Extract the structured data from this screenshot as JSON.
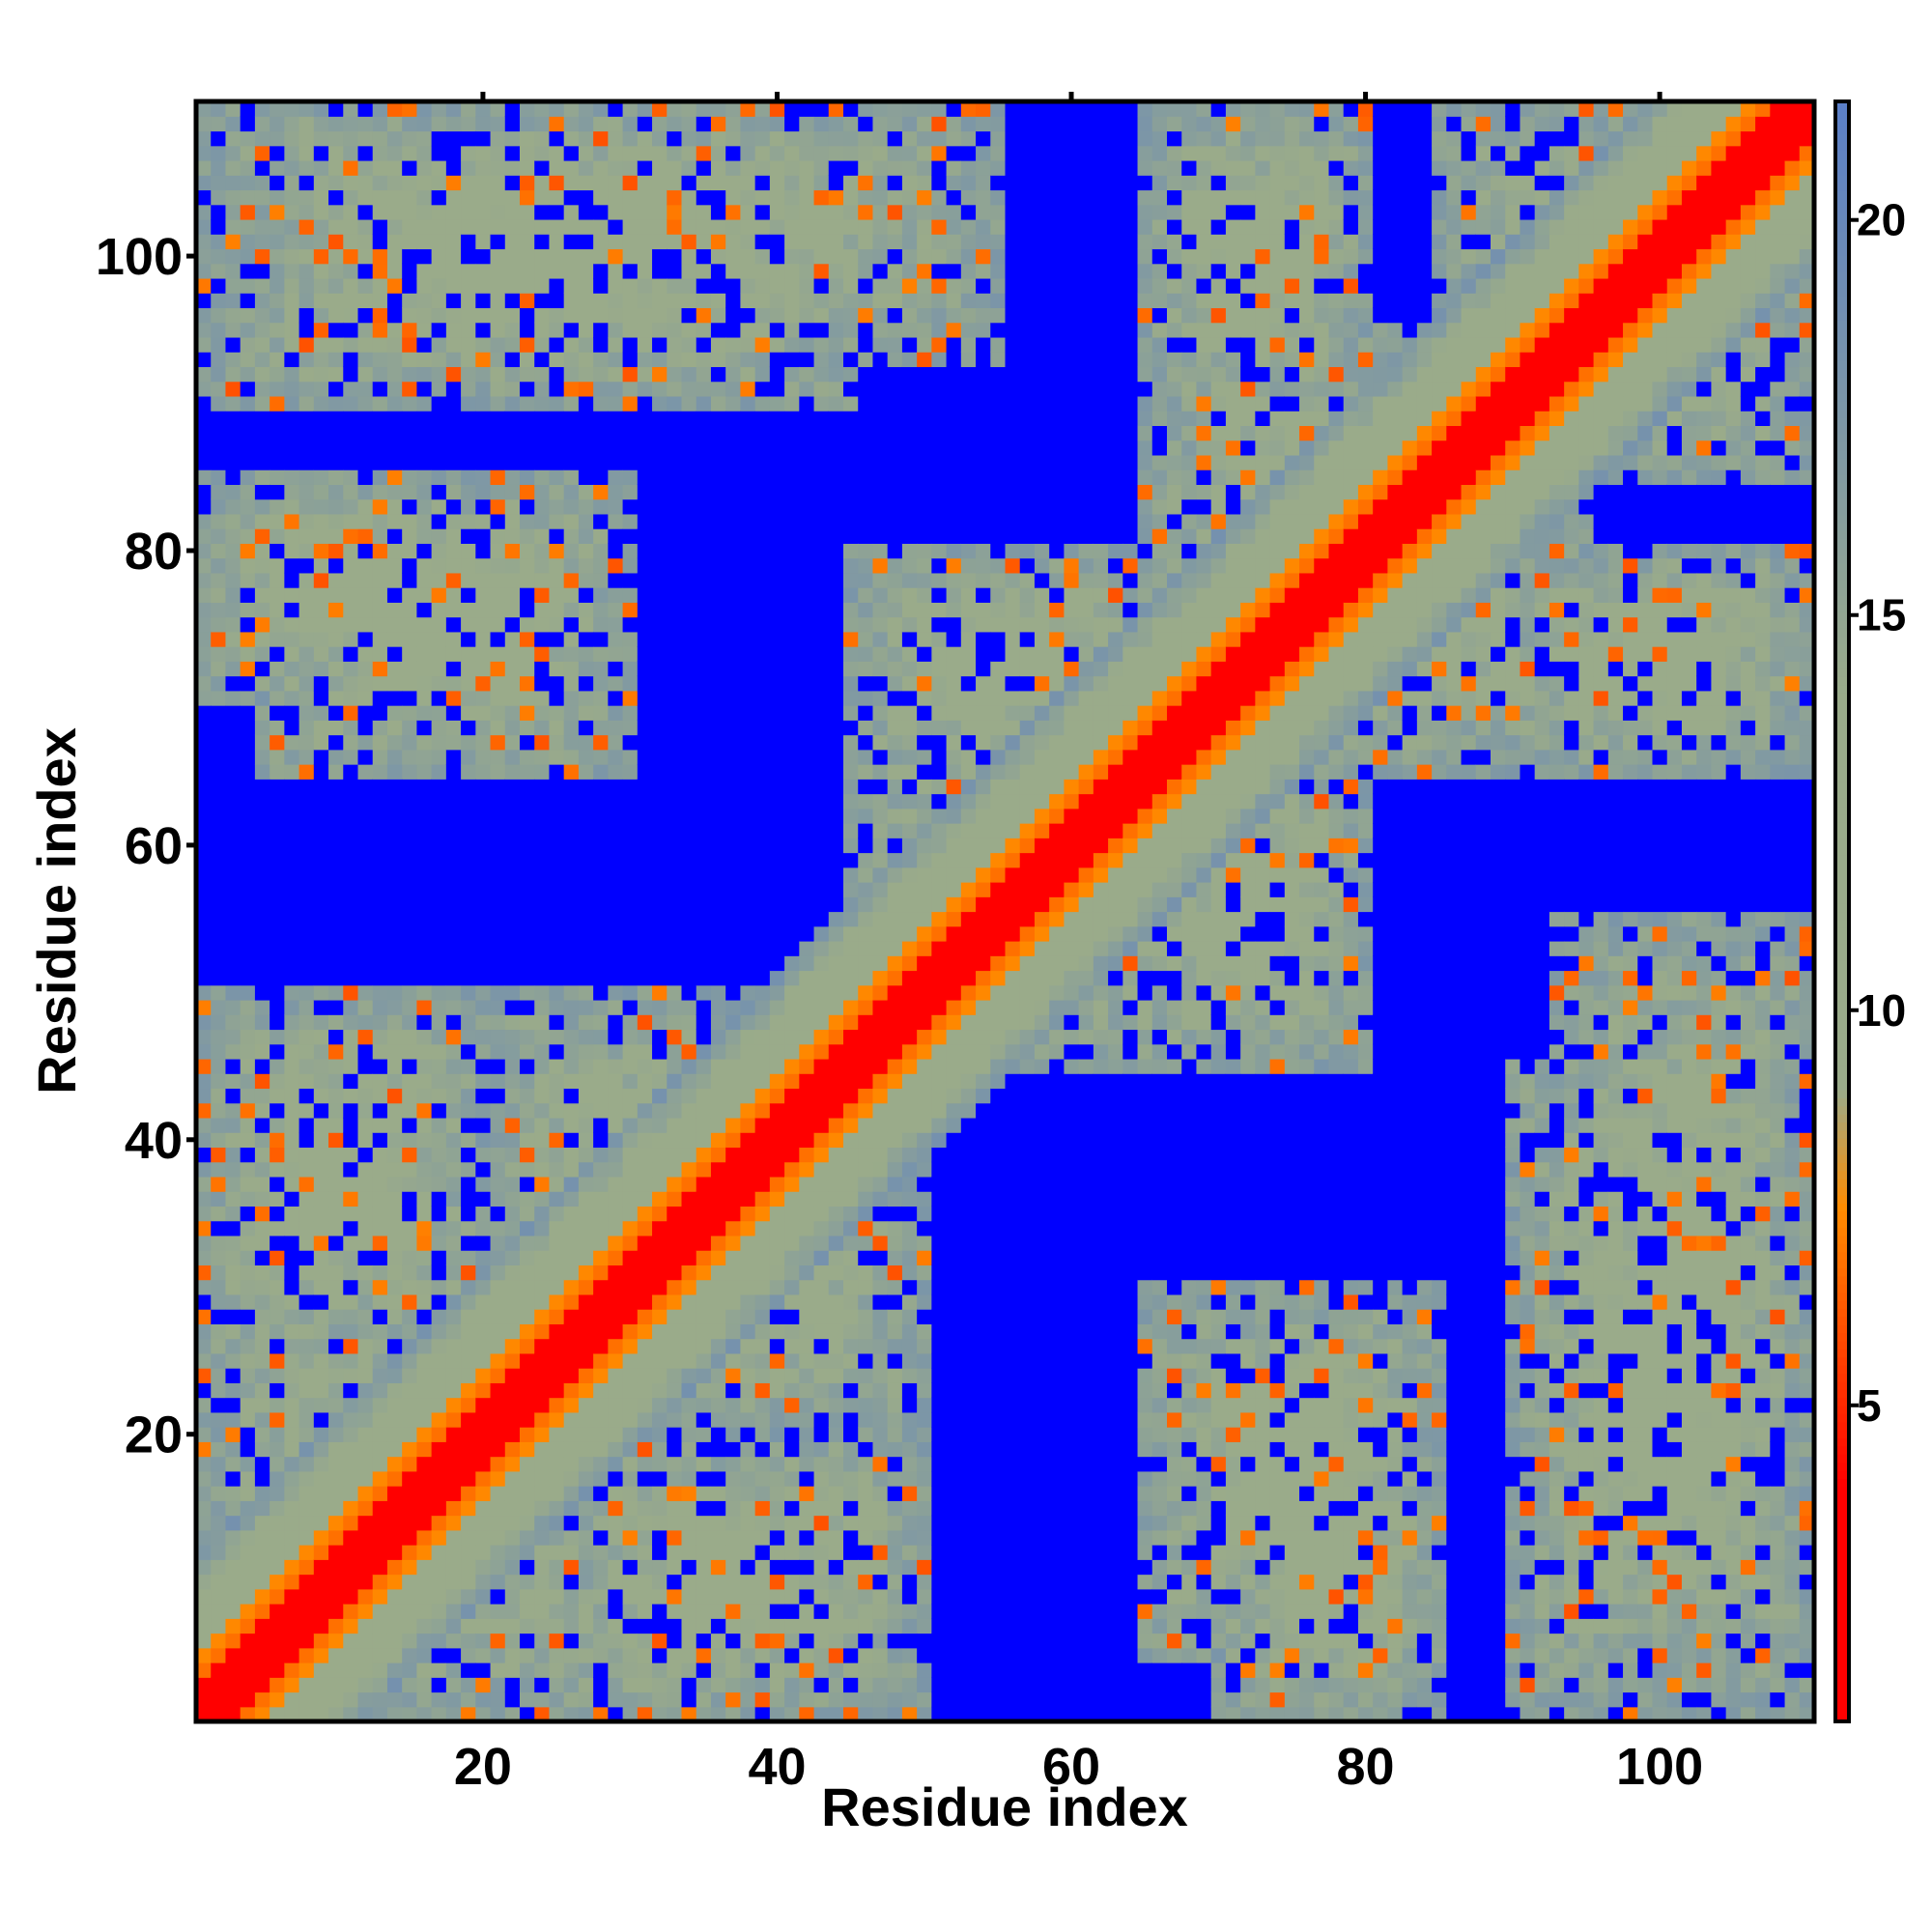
{
  "chart_data": {
    "type": "heatmap",
    "title": "",
    "xlabel": "Residue index",
    "ylabel": "Residue index",
    "n_residues": 110,
    "xlim": [
      1,
      110
    ],
    "ylim": [
      1,
      110
    ],
    "x_ticks": [
      20,
      40,
      60,
      80,
      100
    ],
    "y_ticks": [
      20,
      40,
      60,
      80,
      100
    ],
    "x_tick_labels": [
      "20",
      "40",
      "60",
      "80",
      "100"
    ],
    "y_tick_labels": [
      "20",
      "40",
      "60",
      "80",
      "100"
    ],
    "grid": false,
    "value_range": [
      1,
      21.5
    ],
    "cutoff_value": 21.5,
    "colorbar": {
      "ticks": [
        5,
        10,
        15,
        20
      ],
      "tick_labels": [
        "5",
        "10",
        "15",
        "20"
      ],
      "colors": {
        "min": "#ff0000",
        "low": "#ff8c00",
        "mid": "#9aab8a",
        "high": "#5b7fc7",
        "cutoff": "#0000ff"
      }
    },
    "contact_blocks": [
      {
        "x": [
          1,
          30
        ],
        "y": [
          1,
          30
        ]
      },
      {
        "x": [
          20,
          50
        ],
        "y": [
          20,
          50
        ]
      },
      {
        "x": [
          45,
          75
        ],
        "y": [
          45,
          75
        ]
      },
      {
        "x": [
          65,
          95
        ],
        "y": [
          65,
          95
        ]
      },
      {
        "x": [
          85,
          110
        ],
        "y": [
          85,
          110
        ]
      },
      {
        "x": [
          1,
          20
        ],
        "y": [
          70,
          85
        ]
      },
      {
        "x": [
          70,
          85
        ],
        "y": [
          1,
          20
        ]
      },
      {
        "x": [
          1,
          55
        ],
        "y": [
          93,
          110
        ]
      },
      {
        "x": [
          93,
          110
        ],
        "y": [
          1,
          55
        ]
      },
      {
        "x": [
          1,
          20
        ],
        "y": [
          25,
          50
        ]
      },
      {
        "x": [
          25,
          50
        ],
        "y": [
          1,
          20
        ]
      },
      {
        "x": [
          65,
          80
        ],
        "y": [
          90,
          110
        ]
      },
      {
        "x": [
          90,
          110
        ],
        "y": [
          65,
          80
        ]
      },
      {
        "x": [
          90,
          110
        ],
        "y": [
          1,
          45
        ]
      },
      {
        "x": [
          1,
          45
        ],
        "y": [
          90,
          110
        ]
      },
      {
        "x": [
          45,
          65
        ],
        "y": [
          65,
          80
        ]
      },
      {
        "x": [
          65,
          80
        ],
        "y": [
          45,
          65
        ]
      },
      {
        "x": [
          65,
          85
        ],
        "y": [
          5,
          30
        ]
      },
      {
        "x": [
          5,
          30
        ],
        "y": [
          65,
          85
        ]
      }
    ]
  }
}
